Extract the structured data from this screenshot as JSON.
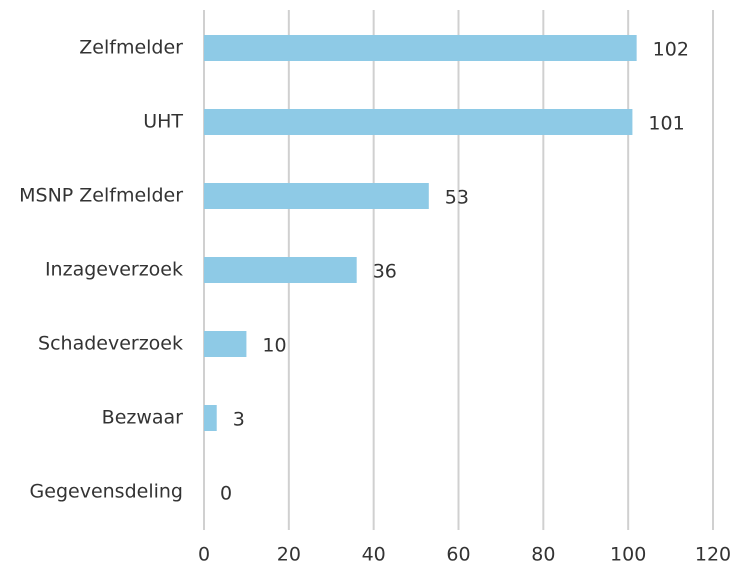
{
  "chart_data": {
    "type": "bar",
    "orientation": "horizontal",
    "categories": [
      "Zelfmelder",
      "UHT",
      "MSNP Zelfmelder",
      "Inzageverzoek",
      "Schadeverzoek",
      "Bezwaar",
      "Gegevensdeling"
    ],
    "values": [
      102,
      101,
      53,
      36,
      10,
      3,
      0
    ],
    "color": "#8ecae6",
    "xlim": [
      0,
      120
    ],
    "xticks": [
      0,
      20,
      40,
      60,
      80,
      100,
      120
    ],
    "grid": true
  }
}
